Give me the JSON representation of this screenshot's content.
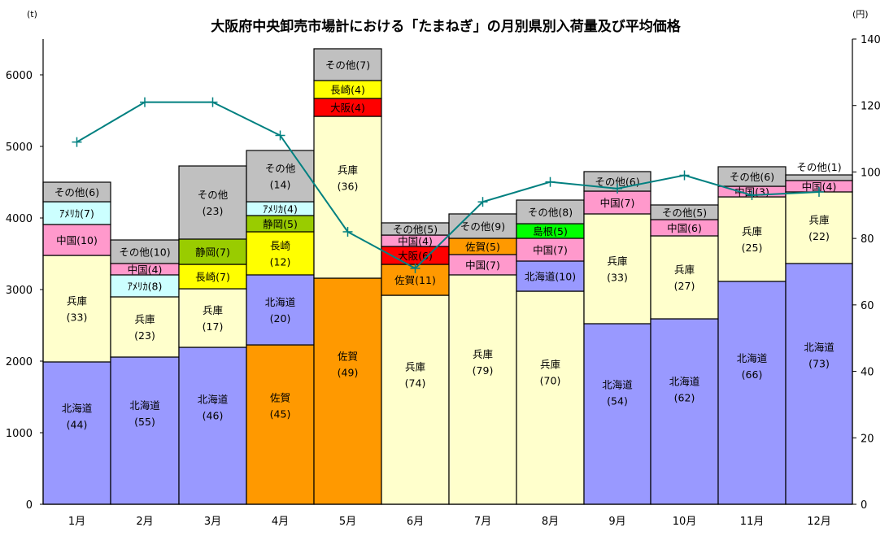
{
  "chart_data": {
    "type": "bar",
    "stacked": true,
    "title": "大阪府中央卸売市場計における「たまねぎ」の月別県別入荷量及び平均価格",
    "ylabel_left_unit": "(t)",
    "ylabel_right_unit": "(円)",
    "ylim_left": [
      0,
      6500
    ],
    "yticks_left": [
      "0",
      "1000",
      "2000",
      "3000",
      "4000",
      "5000",
      "6000"
    ],
    "ytick_values_left": [
      0,
      1000,
      2000,
      3000,
      4000,
      5000,
      6000
    ],
    "ylim_right": [
      0,
      140
    ],
    "yticks_right": [
      "0",
      "20",
      "40",
      "60",
      "80",
      "100",
      "120",
      "140"
    ],
    "ytick_values_right": [
      0,
      20,
      40,
      60,
      80,
      100,
      120,
      140
    ],
    "categories": [
      "1月",
      "2月",
      "3月",
      "4月",
      "5月",
      "6月",
      "7月",
      "8月",
      "9月",
      "10月",
      "11月",
      "12月"
    ],
    "colors": {
      "北海道": "#9999ff",
      "兵庫": "#ffffcc",
      "中国": "#ff99cc",
      "アメリカ": "#ccffff",
      "その他": "#c0c0c0",
      "静岡": "#99cc00",
      "長崎": "#ffff00",
      "佐賀": "#ff9900",
      "大阪": "#ff0000",
      "島根": "#00ff00",
      "line": "#008080"
    },
    "stacks": [
      [
        {
          "name": "北海道",
          "value": 1989,
          "label": [
            "北海道",
            "(44)"
          ]
        },
        {
          "name": "兵庫",
          "value": 1488,
          "label": [
            "兵庫",
            "(33)"
          ]
        },
        {
          "name": "中国",
          "value": 432,
          "label": [
            "中国(10)"
          ]
        },
        {
          "name": "アメリカ",
          "value": 318,
          "label": [
            "ｱﾒﾘｶ(7)"
          ]
        },
        {
          "name": "その他",
          "value": 273,
          "label": [
            "その他(6)"
          ]
        }
      ],
      [
        {
          "name": "北海道",
          "value": 2057,
          "label": [
            "北海道",
            "(55)"
          ]
        },
        {
          "name": "兵庫",
          "value": 841,
          "label": [
            "兵庫",
            "(23)"
          ]
        },
        {
          "name": "アメリカ",
          "value": 307,
          "label": [
            "ｱﾒﾘｶ(8)"
          ]
        },
        {
          "name": "中国",
          "value": 159,
          "label": [
            "中国(4)"
          ]
        },
        {
          "name": "その他",
          "value": 329,
          "label": [
            "その他(10)"
          ]
        }
      ],
      [
        {
          "name": "北海道",
          "value": 2193,
          "label": [
            "北海道",
            "(46)"
          ]
        },
        {
          "name": "兵庫",
          "value": 818,
          "label": [
            "兵庫",
            "(17)"
          ]
        },
        {
          "name": "長崎",
          "value": 341,
          "label": [
            "長崎(7)"
          ]
        },
        {
          "name": "静岡",
          "value": 353,
          "label": [
            "静岡(7)"
          ]
        },
        {
          "name": "その他",
          "value": 1022,
          "label": [
            "その他",
            "(23)"
          ]
        }
      ],
      [
        {
          "name": "佐賀",
          "value": 2227,
          "label": [
            "佐賀",
            "(45)"
          ]
        },
        {
          "name": "北海道",
          "value": 978,
          "label": [
            "北海道",
            "(20)"
          ]
        },
        {
          "name": "長崎",
          "value": 602,
          "label": [
            "長崎",
            "(12)"
          ]
        },
        {
          "name": "静岡",
          "value": 227,
          "label": [
            "静岡(5)"
          ]
        },
        {
          "name": "アメリカ",
          "value": 193,
          "label": [
            "ｱﾒﾘｶ(4)"
          ]
        },
        {
          "name": "その他",
          "value": 716,
          "label": [
            "その他",
            "(14)"
          ]
        }
      ],
      [
        {
          "name": "佐賀",
          "value": 3159,
          "label": [
            "佐賀",
            "(49)"
          ]
        },
        {
          "name": "兵庫",
          "value": 2261,
          "label": [
            "兵庫",
            "(36)"
          ]
        },
        {
          "name": "大阪",
          "value": 250,
          "label": [
            "大阪(4)"
          ]
        },
        {
          "name": "長崎",
          "value": 250,
          "label": [
            "長崎(4)"
          ]
        },
        {
          "name": "その他",
          "value": 444,
          "label": [
            "その他(7)"
          ]
        }
      ],
      [
        {
          "name": "兵庫",
          "value": 2920,
          "label": [
            "兵庫",
            "(74)"
          ]
        },
        {
          "name": "佐賀",
          "value": 432,
          "label": [
            "佐賀(11)"
          ]
        },
        {
          "name": "大阪",
          "value": 250,
          "label": [
            "大阪(6)"
          ]
        },
        {
          "name": "中国",
          "value": 159,
          "label": [
            "中国(4)"
          ]
        },
        {
          "name": "その他",
          "value": 171,
          "label": [
            "その他(5)"
          ]
        }
      ],
      [
        {
          "name": "兵庫",
          "value": 3205,
          "label": [
            "兵庫",
            "(79)"
          ]
        },
        {
          "name": "中国",
          "value": 284,
          "label": [
            "中国(7)"
          ]
        },
        {
          "name": "佐賀",
          "value": 227,
          "label": [
            "佐賀(5)"
          ]
        },
        {
          "name": "その他",
          "value": 341,
          "label": [
            "その他(9)"
          ]
        }
      ],
      [
        {
          "name": "兵庫",
          "value": 2977,
          "label": [
            "兵庫",
            "(70)"
          ]
        },
        {
          "name": "北海道",
          "value": 421,
          "label": [
            "北海道(10)"
          ]
        },
        {
          "name": "中国",
          "value": 318,
          "label": [
            "中国(7)"
          ]
        },
        {
          "name": "島根",
          "value": 204,
          "label": [
            "島根(5)"
          ]
        },
        {
          "name": "その他",
          "value": 330,
          "label": [
            "その他(8)"
          ]
        }
      ],
      [
        {
          "name": "北海道",
          "value": 2523,
          "label": [
            "北海道",
            "(54)"
          ]
        },
        {
          "name": "兵庫",
          "value": 1534,
          "label": [
            "兵庫",
            "(33)"
          ]
        },
        {
          "name": "中国",
          "value": 318,
          "label": [
            "中国(7)"
          ]
        },
        {
          "name": "その他",
          "value": 273,
          "label": [
            "その他(6)"
          ]
        }
      ],
      [
        {
          "name": "北海道",
          "value": 2591,
          "label": [
            "北海道",
            "(62)"
          ]
        },
        {
          "name": "兵庫",
          "value": 1159,
          "label": [
            "兵庫",
            "(27)"
          ]
        },
        {
          "name": "中国",
          "value": 227,
          "label": [
            "中国(6)"
          ]
        },
        {
          "name": "その他",
          "value": 205,
          "label": [
            "その他(5)"
          ]
        }
      ],
      [
        {
          "name": "北海道",
          "value": 3114,
          "label": [
            "北海道",
            "(66)"
          ]
        },
        {
          "name": "兵庫",
          "value": 1181,
          "label": [
            "兵庫",
            "(25)"
          ]
        },
        {
          "name": "中国",
          "value": 148,
          "label": [
            "中国(3)"
          ]
        },
        {
          "name": "その他",
          "value": 273,
          "label": [
            "その他(6)"
          ]
        }
      ],
      [
        {
          "name": "北海道",
          "value": 3364,
          "label": [
            "北海道",
            "(73)"
          ]
        },
        {
          "name": "兵庫",
          "value": 1000,
          "label": [
            "兵庫",
            "(22)"
          ]
        },
        {
          "name": "中国",
          "value": 159,
          "label": [
            "中国(4)"
          ]
        },
        {
          "name": "その他",
          "value": 79,
          "label": [
            "その他(1)"
          ],
          "label_above": true
        }
      ]
    ],
    "price_series": {
      "name": "平均価格",
      "axis": "right",
      "values": [
        109,
        121,
        121,
        111,
        82,
        71,
        91,
        97,
        95,
        99,
        93,
        94
      ]
    }
  }
}
